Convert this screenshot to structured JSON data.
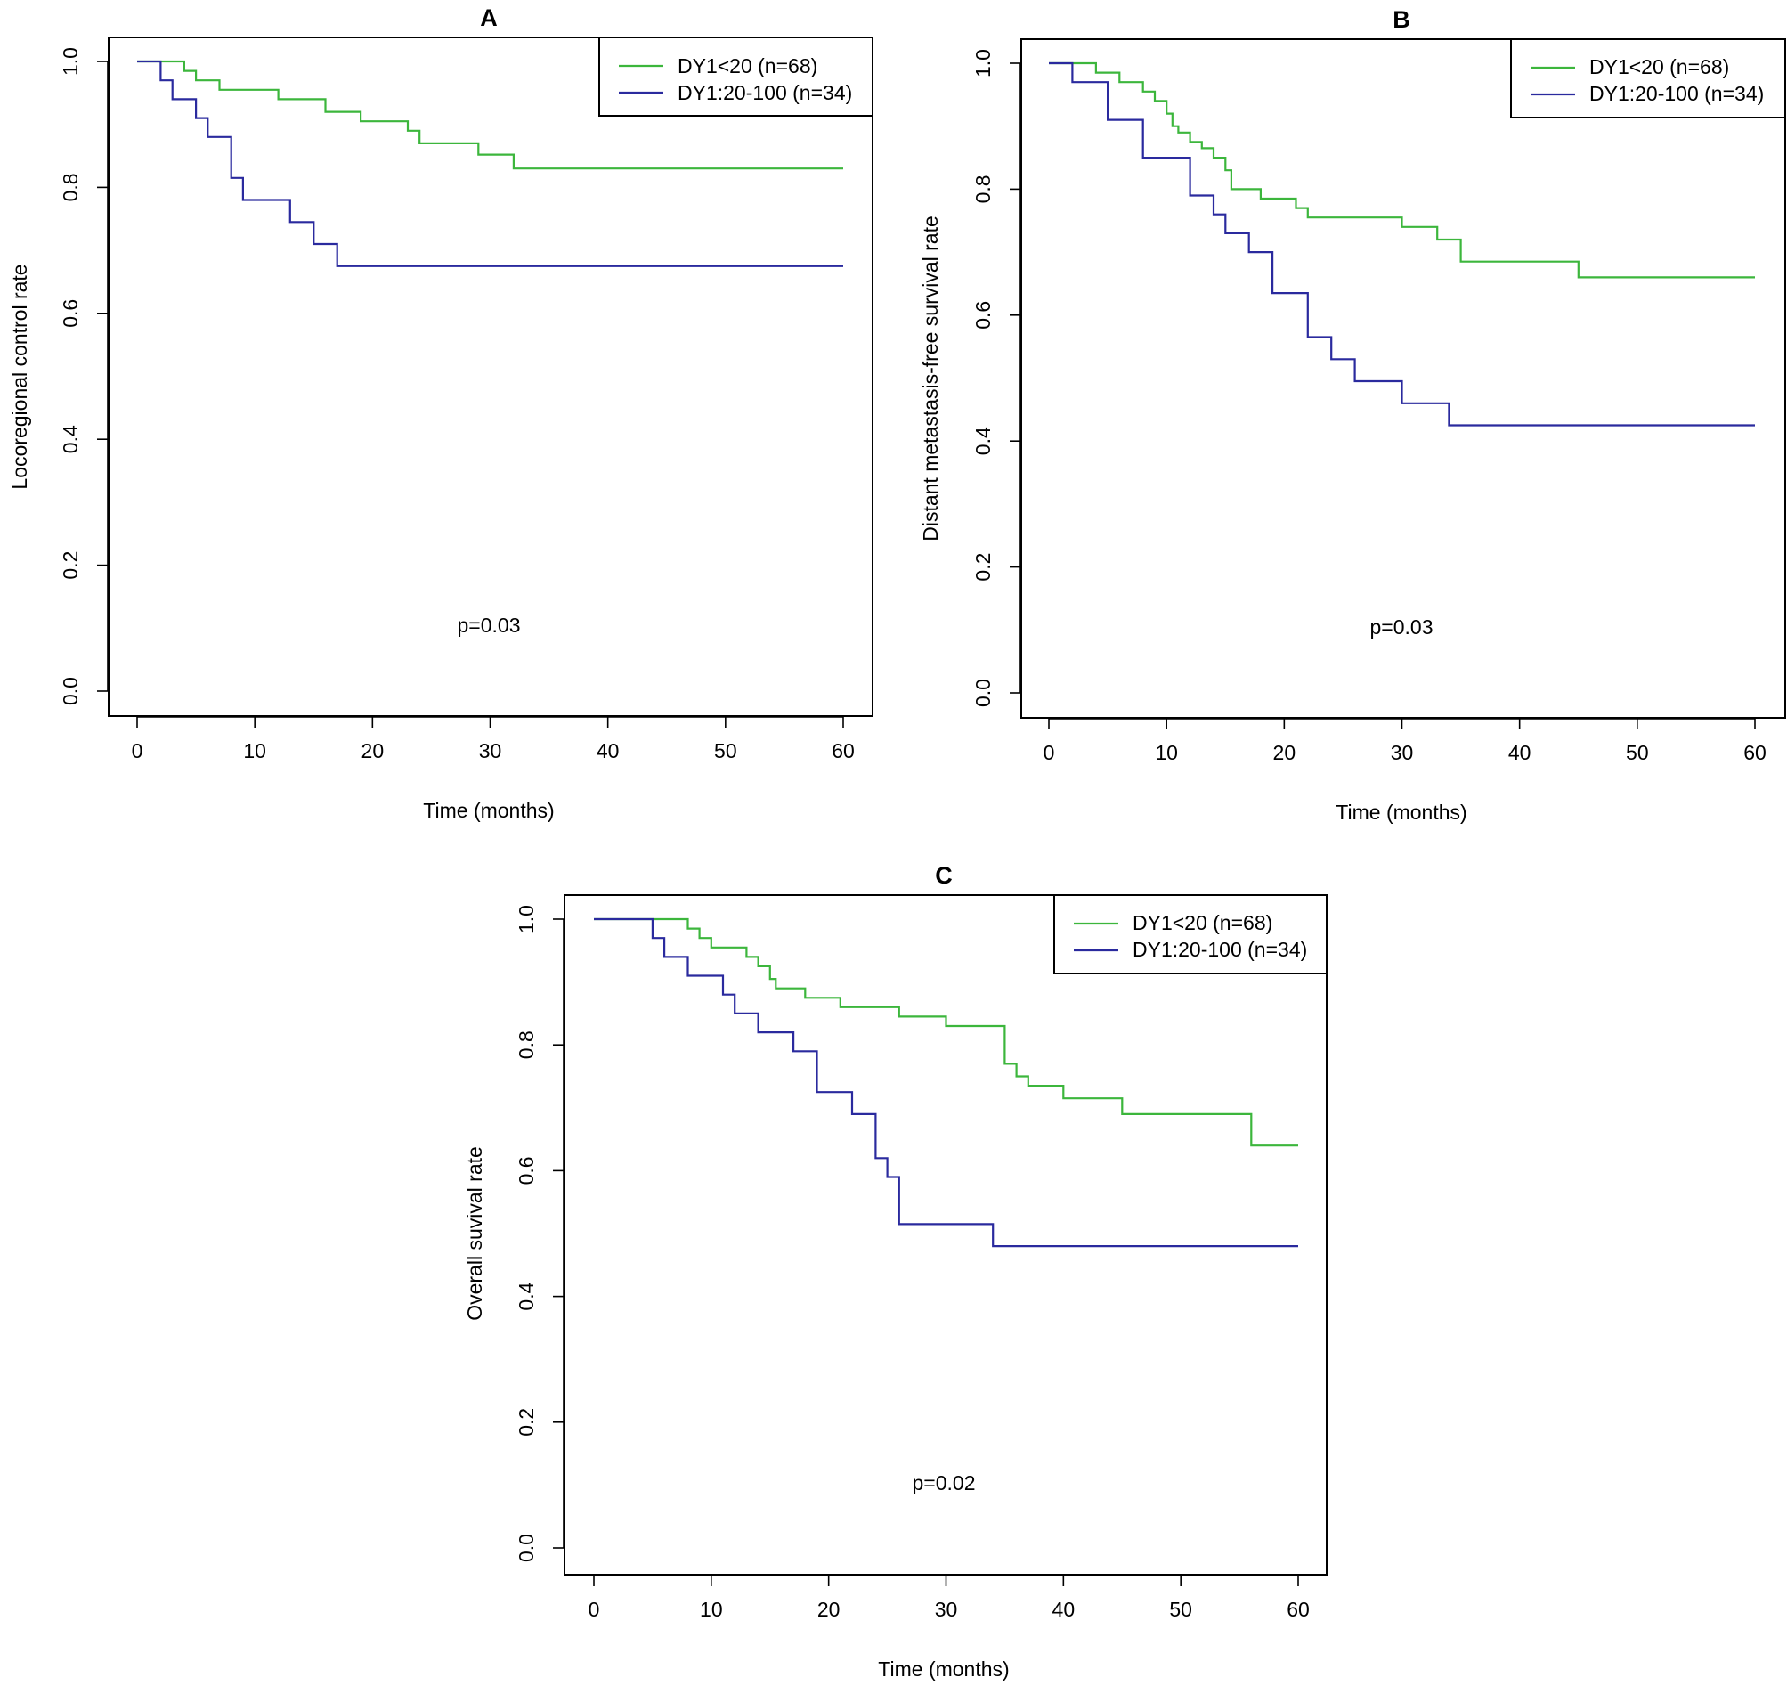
{
  "figure": {
    "type": "line",
    "panels_count": 3
  },
  "chart_data": [
    {
      "type": "line",
      "panel": "A",
      "title": "A",
      "xlabel": "Time (months)",
      "ylabel": "Locoregional control rate",
      "xlim": [
        0,
        60
      ],
      "ylim": [
        0,
        1
      ],
      "xticks": [
        "0",
        "10",
        "20",
        "30",
        "40",
        "50",
        "60"
      ],
      "yticks": [
        "0.0",
        "0.2",
        "0.4",
        "0.6",
        "0.8",
        "1.0"
      ],
      "xtick_values": [
        0,
        10,
        20,
        30,
        40,
        50,
        60
      ],
      "ytick_values": [
        0,
        0.2,
        0.4,
        0.6,
        0.8,
        1.0
      ],
      "legend_position": "top-right",
      "annotation": "p=0.03",
      "annotation_at": [
        30,
        0.105
      ],
      "series": [
        {
          "name": "DY1<20 (n=68)",
          "color": "#3cb63c",
          "steps": [
            [
              0,
              1.0
            ],
            [
              4,
              0.985
            ],
            [
              5,
              0.97
            ],
            [
              7,
              0.955
            ],
            [
              12,
              0.94
            ],
            [
              16,
              0.92
            ],
            [
              19,
              0.905
            ],
            [
              23,
              0.89
            ],
            [
              24,
              0.87
            ],
            [
              29,
              0.852
            ],
            [
              32,
              0.83
            ],
            [
              60,
              0.83
            ]
          ]
        },
        {
          "name": "DY1:20-100 (n=34)",
          "color": "#2a2a9e",
          "steps": [
            [
              0,
              1.0
            ],
            [
              2,
              0.97
            ],
            [
              3,
              0.94
            ],
            [
              5,
              0.91
            ],
            [
              6,
              0.88
            ],
            [
              8,
              0.815
            ],
            [
              9,
              0.78
            ],
            [
              13,
              0.745
            ],
            [
              15,
              0.71
            ],
            [
              17,
              0.675
            ],
            [
              60,
              0.675
            ]
          ]
        }
      ]
    },
    {
      "type": "line",
      "panel": "B",
      "title": "B",
      "xlabel": "Time (months)",
      "ylabel": "Distant metastasis-free survival rate",
      "xlim": [
        0,
        60
      ],
      "ylim": [
        0,
        1
      ],
      "xticks": [
        "0",
        "10",
        "20",
        "30",
        "40",
        "50",
        "60"
      ],
      "yticks": [
        "0.0",
        "0.2",
        "0.4",
        "0.6",
        "0.8",
        "1.0"
      ],
      "xtick_values": [
        0,
        10,
        20,
        30,
        40,
        50,
        60
      ],
      "ytick_values": [
        0,
        0.2,
        0.4,
        0.6,
        0.8,
        1.0
      ],
      "legend_position": "top-right",
      "annotation": "p=0.03",
      "annotation_at": [
        30,
        0.105
      ],
      "series": [
        {
          "name": "DY1<20 (n=68)",
          "color": "#3cb63c",
          "steps": [
            [
              0,
              1.0
            ],
            [
              4,
              0.985
            ],
            [
              6,
              0.97
            ],
            [
              8,
              0.955
            ],
            [
              9,
              0.94
            ],
            [
              10,
              0.92
            ],
            [
              10.5,
              0.9
            ],
            [
              11,
              0.89
            ],
            [
              12,
              0.875
            ],
            [
              13,
              0.865
            ],
            [
              14,
              0.85
            ],
            [
              15,
              0.83
            ],
            [
              15.5,
              0.8
            ],
            [
              18,
              0.785
            ],
            [
              21,
              0.77
            ],
            [
              22,
              0.755
            ],
            [
              30,
              0.74
            ],
            [
              33,
              0.72
            ],
            [
              35,
              0.685
            ],
            [
              45,
              0.66
            ],
            [
              60,
              0.66
            ]
          ]
        },
        {
          "name": "DY1:20-100 (n=34)",
          "color": "#2a2a9e",
          "steps": [
            [
              0,
              1.0
            ],
            [
              2,
              0.97
            ],
            [
              5,
              0.91
            ],
            [
              8,
              0.85
            ],
            [
              12,
              0.79
            ],
            [
              14,
              0.76
            ],
            [
              15,
              0.73
            ],
            [
              17,
              0.7
            ],
            [
              19,
              0.635
            ],
            [
              22,
              0.565
            ],
            [
              24,
              0.53
            ],
            [
              26,
              0.495
            ],
            [
              30,
              0.46
            ],
            [
              34,
              0.425
            ],
            [
              60,
              0.425
            ]
          ]
        }
      ]
    },
    {
      "type": "line",
      "panel": "C",
      "title": "C",
      "xlabel": "Time (months)",
      "ylabel": "Overall suvival rate",
      "xlim": [
        0,
        60
      ],
      "ylim": [
        0,
        1
      ],
      "xticks": [
        "0",
        "10",
        "20",
        "30",
        "40",
        "50",
        "60"
      ],
      "yticks": [
        "0.0",
        "0.2",
        "0.4",
        "0.6",
        "0.8",
        "1.0"
      ],
      "xtick_values": [
        0,
        10,
        20,
        30,
        40,
        50,
        60
      ],
      "ytick_values": [
        0,
        0.2,
        0.4,
        0.6,
        0.8,
        1.0
      ],
      "legend_position": "top-right",
      "annotation": "p=0.02",
      "annotation_at": [
        30,
        0.105
      ],
      "series": [
        {
          "name": "DY1<20 (n=68)",
          "color": "#3cb63c",
          "steps": [
            [
              0,
              1.0
            ],
            [
              8,
              0.985
            ],
            [
              9,
              0.97
            ],
            [
              10,
              0.955
            ],
            [
              13,
              0.94
            ],
            [
              14,
              0.925
            ],
            [
              15,
              0.905
            ],
            [
              15.5,
              0.89
            ],
            [
              18,
              0.875
            ],
            [
              21,
              0.86
            ],
            [
              26,
              0.845
            ],
            [
              30,
              0.83
            ],
            [
              35,
              0.77
            ],
            [
              36,
              0.75
            ],
            [
              37,
              0.735
            ],
            [
              40,
              0.715
            ],
            [
              45,
              0.69
            ],
            [
              56,
              0.64
            ],
            [
              60,
              0.64
            ]
          ]
        },
        {
          "name": "DY1:20-100 (n=34)",
          "color": "#2a2a9e",
          "steps": [
            [
              0,
              1.0
            ],
            [
              5,
              0.97
            ],
            [
              6,
              0.94
            ],
            [
              8,
              0.91
            ],
            [
              11,
              0.88
            ],
            [
              12,
              0.85
            ],
            [
              14,
              0.82
            ],
            [
              17,
              0.79
            ],
            [
              19,
              0.725
            ],
            [
              22,
              0.69
            ],
            [
              24,
              0.62
            ],
            [
              25,
              0.59
            ],
            [
              26,
              0.515
            ],
            [
              34,
              0.48
            ],
            [
              60,
              0.48
            ]
          ]
        }
      ]
    }
  ]
}
